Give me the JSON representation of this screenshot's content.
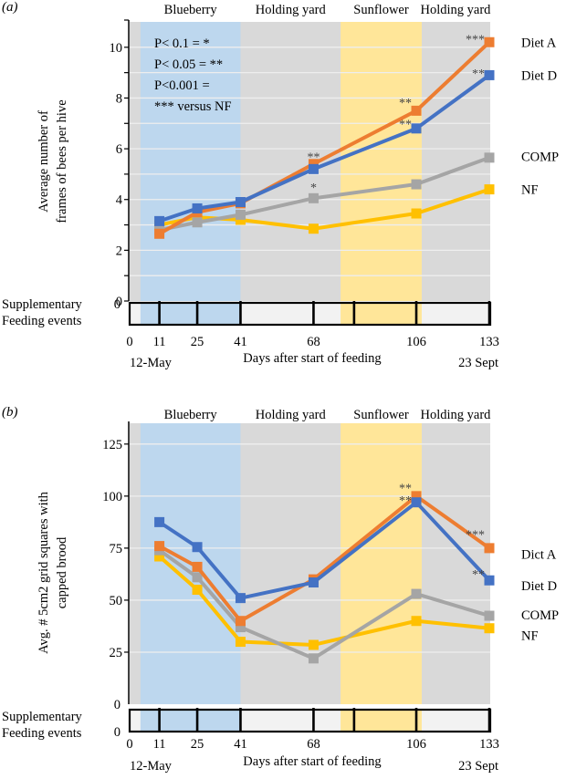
{
  "colors": {
    "diet_a": "#ED7D31",
    "diet_d": "#4472C4",
    "comp": "#A5A5A5",
    "nf": "#FFC000",
    "plot_bg": "#D9D9D9",
    "blueberry": "#BDD7EE",
    "sunflower": "#FFE699",
    "feeding_bar_bg": "#F2F2F2",
    "gridline": "#EEEEEE"
  },
  "chart_data": [
    {
      "panel_label": "(a)",
      "type": "line",
      "title": "",
      "xlabel": "Days after start of feeding",
      "ylabel_lines": [
        "Average number of",
        "frames of bees per hive"
      ],
      "x_tick_labels": [
        "0",
        "11",
        "25",
        "41",
        "68",
        "106",
        "133"
      ],
      "x_ticks": [
        0,
        11,
        25,
        41,
        68,
        106,
        133
      ],
      "x_date_left": "12-May",
      "x_date_right": "23 Sept",
      "xlim": [
        0,
        133
      ],
      "ylim": [
        0,
        11
      ],
      "y_ticks": [
        0,
        1,
        2,
        3,
        4,
        5,
        6,
        7,
        8,
        9,
        10
      ],
      "y_tick_labels": [
        "0",
        "",
        "2",
        "",
        "4",
        "",
        "6",
        "",
        "8",
        "",
        "10"
      ],
      "grid": true,
      "periods": [
        {
          "label": "Blueberry",
          "start": 4,
          "end": 41,
          "fill": "blueberry"
        },
        {
          "label": "Holding yard",
          "start": 41,
          "end": 78,
          "fill": "plot_bg"
        },
        {
          "label": "Sunflower",
          "start": 78,
          "end": 108,
          "fill": "sunflower"
        },
        {
          "label": "Holding yard",
          "start": 108,
          "end": 133,
          "fill": "plot_bg"
        }
      ],
      "feeding_label_lines": [
        "Supplementary",
        "Feeding events"
      ],
      "feeding_events": [
        11,
        25,
        41,
        68,
        83,
        106,
        133
      ],
      "feeding_zero_labels": [
        "0"
      ],
      "significance_note": [
        "P< 0.1 = *",
        "P< 0.05 = **",
        "P<0.001 =",
        "*** versus NF"
      ],
      "x": [
        11,
        25,
        41,
        68,
        106,
        133
      ],
      "series": [
        {
          "name": "Diet A",
          "color_key": "diet_a",
          "values": [
            2.65,
            3.5,
            3.85,
            5.4,
            7.5,
            10.2
          ]
        },
        {
          "name": "Diet D",
          "color_key": "diet_d",
          "values": [
            3.15,
            3.65,
            3.9,
            5.2,
            6.8,
            8.9
          ]
        },
        {
          "name": "COMP",
          "color_key": "comp",
          "values": [
            2.8,
            3.1,
            3.4,
            4.05,
            4.6,
            5.65
          ]
        },
        {
          "name": "NF",
          "color_key": "nf",
          "values": [
            3.0,
            3.3,
            3.2,
            2.85,
            3.45,
            4.4
          ]
        }
      ],
      "legend": [
        {
          "label": "Diet A",
          "at_value": 10.2
        },
        {
          "label": "Diet D",
          "at_value": 8.9
        },
        {
          "label": "COMP",
          "at_value": 5.7
        },
        {
          "label": "NF",
          "at_value": 4.4
        }
      ],
      "legend_placement": "right",
      "annotations": [
        {
          "text": "**",
          "x": 68,
          "y": 5.8,
          "anchor": "center"
        },
        {
          "text": "*",
          "x": 68,
          "y": 4.6,
          "anchor": "center"
        },
        {
          "text": "**",
          "x": 106,
          "y": 7.95,
          "anchor": "end"
        },
        {
          "text": "**",
          "x": 106,
          "y": 7.1,
          "anchor": "end"
        },
        {
          "text": "***",
          "x": 133,
          "y": 10.45,
          "anchor": "end"
        },
        {
          "text": "**",
          "x": 133,
          "y": 9.1,
          "anchor": "end"
        }
      ]
    },
    {
      "panel_label": "(b)",
      "type": "line",
      "title": "",
      "xlabel": "Days after start of feeding",
      "ylabel_lines": [
        "Avg. # 5cm2 grid squares with",
        "capped brood"
      ],
      "x_tick_labels": [
        "0",
        "11",
        "25",
        "41",
        "68",
        "106",
        "133"
      ],
      "x_ticks": [
        0,
        11,
        25,
        41,
        68,
        106,
        133
      ],
      "x_date_left": "12-May",
      "x_date_right": "23 Sept",
      "xlim": [
        0,
        133
      ],
      "ylim": [
        0,
        135
      ],
      "y_ticks": [
        25,
        50,
        75,
        100,
        125
      ],
      "y_tick_labels": [
        "25",
        "50",
        "75",
        "100",
        "125"
      ],
      "grid": true,
      "periods": [
        {
          "label": "Blueberry",
          "start": 4,
          "end": 41,
          "fill": "blueberry"
        },
        {
          "label": "Holding yard",
          "start": 41,
          "end": 78,
          "fill": "plot_bg"
        },
        {
          "label": "Sunflower",
          "start": 78,
          "end": 108,
          "fill": "sunflower"
        },
        {
          "label": "Holding yard",
          "start": 108,
          "end": 133,
          "fill": "plot_bg"
        }
      ],
      "feeding_label_lines": [
        "Supplementary",
        "Feeding events"
      ],
      "feeding_events": [
        11,
        25,
        41,
        68,
        83,
        106,
        133
      ],
      "feeding_zero_labels": [
        "0",
        "0"
      ],
      "significance_note": [],
      "x": [
        11,
        25,
        41,
        68,
        106,
        133
      ],
      "series": [
        {
          "name": "Diet A",
          "color_key": "diet_a",
          "values": [
            76,
            66,
            40,
            60,
            100,
            75
          ]
        },
        {
          "name": "Diet D",
          "color_key": "diet_d",
          "values": [
            87.5,
            75.5,
            51,
            58.5,
            97,
            59.5
          ]
        },
        {
          "name": "COMP",
          "color_key": "comp",
          "values": [
            74,
            61,
            37,
            22,
            53,
            42.5
          ]
        },
        {
          "name": "NF",
          "color_key": "nf",
          "values": [
            71,
            55,
            30,
            28.5,
            40,
            36.5
          ]
        }
      ],
      "legend": [
        {
          "label": "Dict A",
          "at_value": 72
        },
        {
          "label": "Diet D",
          "at_value": 57
        },
        {
          "label": "COMP",
          "at_value": 43
        },
        {
          "label": "NF",
          "at_value": 33
        }
      ],
      "legend_placement": "right",
      "annotations": [
        {
          "text": "**",
          "x": 106,
          "y": 105.5,
          "anchor": "end"
        },
        {
          "text": "**",
          "x": 106,
          "y": 99.5,
          "anchor": "end"
        },
        {
          "text": "***",
          "x": 133,
          "y": 83,
          "anchor": "end"
        },
        {
          "text": "**",
          "x": 133,
          "y": 64,
          "anchor": "end"
        }
      ]
    }
  ]
}
